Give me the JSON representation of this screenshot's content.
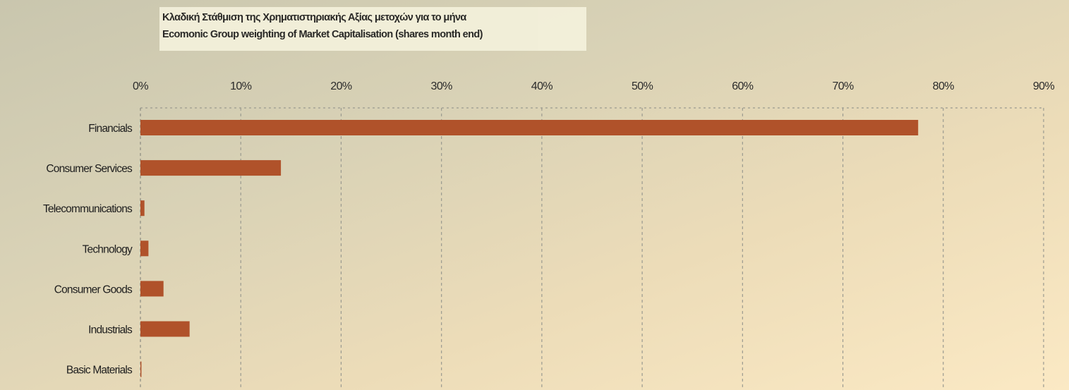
{
  "title": {
    "line1": "Κλαδική Στάθμιση της Χρηματιστηριακής Αξίας μετοχών για το μήνα",
    "line2": "Ecomonic Group weighting of Market Capitalisation (shares month end)"
  },
  "colors": {
    "bar": "#b0522a",
    "grid": "#9a9a90",
    "axis": "#8a8a80"
  },
  "chart_data": {
    "type": "bar",
    "orientation": "horizontal",
    "title": "Κλαδική Στάθμιση της Χρηματιστηριακής Αξίας μετοχών για το μήνα / Ecomonic Group weighting of Market Capitalisation (shares month end)",
    "categories": [
      "Financials",
      "Consumer Services",
      "Telecommunications",
      "Technology",
      "Consumer Goods",
      "Industrials",
      "Basic Materials"
    ],
    "values": [
      77.5,
      14.0,
      0.4,
      0.8,
      2.3,
      4.9,
      0.1
    ],
    "value_unit": "%",
    "xlim": [
      0,
      90
    ],
    "xticks": [
      0,
      10,
      20,
      30,
      40,
      50,
      60,
      70,
      80,
      90
    ],
    "xtick_labels": [
      "0%",
      "10%",
      "20%",
      "30%",
      "40%",
      "50%",
      "60%",
      "70%",
      "80%",
      "90%"
    ],
    "xaxis_position": "top",
    "xlabel": "",
    "ylabel": "",
    "grid": true,
    "grid_style": "dashed",
    "legend": "none"
  }
}
